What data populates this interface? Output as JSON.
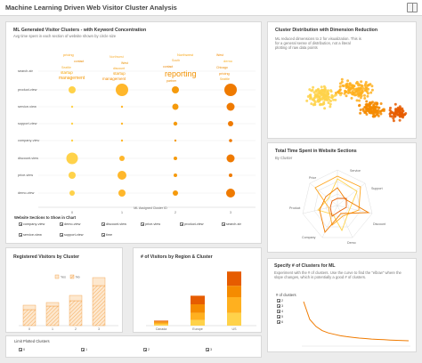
{
  "header": {
    "title": "Machine Learning Driven Web Visitor Cluster Analysis",
    "icon": "book-icon"
  },
  "colors": {
    "accent": "#f28c00",
    "light": "#ffd24a",
    "dark": "#e65c00"
  },
  "cluster_panel": {
    "title": "ML Generated Visitor Clusters - with Keyword Concentration",
    "subtitle": "Avg time spent in each section of website shown by circle size",
    "axis_title": "ML Assigned Cluster ID",
    "rows": [
      "search-str",
      "product-view",
      "service-view",
      "support-view",
      "company-view",
      "discount-view",
      "price-view",
      "demo-view"
    ],
    "clusters": [
      "0",
      "1",
      "2",
      "3"
    ],
    "word_labels": [
      "pricing",
      "reporting",
      "startup",
      "management",
      "discount",
      "contact",
      "partner",
      "Northwest",
      "South",
      "West",
      "Seattle",
      "demo",
      "Chicago"
    ],
    "filter_title": "Website Sections to Show in Chart",
    "filters": [
      "company-view",
      "demo-view",
      "discount-view",
      "price-view",
      "product-view",
      "search-str",
      "service-view",
      "support-view",
      "time"
    ]
  },
  "dimred_panel": {
    "title": "Cluster Distribution with Dimension Reduction",
    "subtitle": "ML reduced dimensions to 2 for visualization. This is for a general sense of distribution, not a literal plotting of raw data points"
  },
  "radar_panel": {
    "title": "Total Time Spent in Website Sections",
    "subtitle": "By Cluster",
    "axes": [
      "Service",
      "Support",
      "Discount",
      "Demo",
      "Company",
      "Product",
      "Price"
    ]
  },
  "registered_panel": {
    "title": "Registered Visitors by Cluster",
    "legend": [
      "Yes",
      "No"
    ]
  },
  "region_panel": {
    "title": "# of Visitors by Region & Cluster",
    "regions": [
      "Canada",
      "Europe",
      "US"
    ]
  },
  "ml_panel": {
    "title": "Specify # of Clusters for ML",
    "subtitle": "Experiment with the # of clusters. Use the curve to find the \"elbow\" where the slope changes, which is potentially a good # of clusters.",
    "options_label": "# of clusters",
    "options": [
      "2",
      "3",
      "4",
      "5",
      "6"
    ],
    "curve": [
      100,
      62,
      47,
      38,
      33,
      30,
      27,
      25,
      23.5,
      22,
      21,
      20,
      19.2,
      18.5,
      17.8,
      17.2,
      16.8,
      16.3
    ]
  },
  "footer": {
    "limit_label": "Limit Plotted Clusters",
    "clusters": [
      "0",
      "1",
      "2",
      "3"
    ]
  },
  "chart_data": [
    {
      "type": "scatter",
      "title": "ML Generated Visitor Clusters - with Keyword Concentration",
      "xlabel": "ML Assigned Cluster ID",
      "categories": [
        "0",
        "1",
        "2",
        "3"
      ],
      "rows": [
        "product-view",
        "service-view",
        "support-view",
        "company-view",
        "discount-view",
        "price-view",
        "demo-view"
      ],
      "sizes": [
        [
          4,
          7,
          4,
          7
        ],
        [
          1.2,
          1.2,
          3.5,
          4.5
        ],
        [
          1.2,
          1.2,
          2.2,
          3
        ],
        [
          1.2,
          1.2,
          1.2,
          1.8
        ],
        [
          6.5,
          3,
          2,
          4.5
        ],
        [
          4,
          5,
          2,
          2
        ],
        [
          3,
          4,
          3,
          5
        ]
      ]
    },
    {
      "type": "bar",
      "title": "Registered Visitors by Cluster",
      "categories": [
        "0",
        "1",
        "2",
        "3"
      ],
      "series": [
        {
          "name": "Yes",
          "values": [
            18,
            22,
            28,
            45
          ]
        },
        {
          "name": "No",
          "values": [
            5,
            4,
            6,
            9
          ]
        }
      ]
    },
    {
      "type": "bar",
      "title": "# of Visitors by Region & Cluster",
      "categories": [
        "Canada",
        "Europe",
        "US"
      ],
      "series": [
        {
          "name": "0",
          "values": [
            2,
            8,
            18
          ]
        },
        {
          "name": "1",
          "values": [
            2,
            10,
            22
          ]
        },
        {
          "name": "2",
          "values": [
            2,
            12,
            16
          ]
        },
        {
          "name": "3",
          "values": [
            1,
            12,
            20
          ]
        }
      ]
    }
  ]
}
